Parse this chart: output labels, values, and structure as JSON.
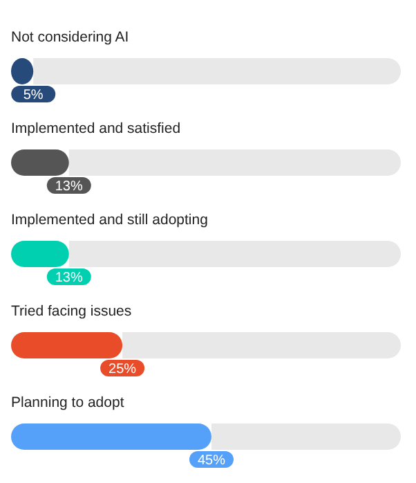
{
  "chart_data": {
    "type": "bar",
    "orientation": "horizontal",
    "categories": [
      "Not considering AI",
      "Implemented and satisfied",
      "Implemented and still adopting",
      "Tried facing issues",
      "Planning to adopt"
    ],
    "values": [
      5,
      13,
      13,
      25,
      45
    ],
    "value_labels": [
      "5%",
      "13%",
      "13%",
      "25%",
      "45%"
    ],
    "colors": [
      "#264a7a",
      "#555555",
      "#00d0b0",
      "#e84c28",
      "#55a0f8"
    ]
  }
}
